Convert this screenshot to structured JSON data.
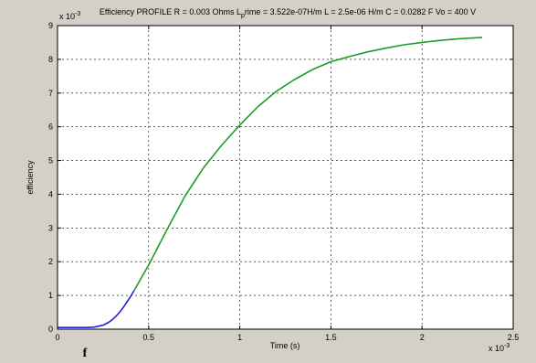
{
  "window": {
    "background": "#d4d0c8",
    "footer_glyph": "f"
  },
  "chart_data": {
    "type": "line",
    "title": {
      "pre": "Efficiency PROFILE R = 0.003 Ohms L",
      "sub": "p",
      "post": "rime = 3.522e-07H/m L = 2.5e-06 H/m C = 0.0282 F Vo = 400 V"
    },
    "xlabel": "Time (s)",
    "ylabel": "efficiency",
    "xlim": [
      0,
      2.5
    ],
    "ylim": [
      0,
      9
    ],
    "x_multiplier": "x 10",
    "x_multiplier_exp": "-3",
    "y_multiplier": "x 10",
    "y_multiplier_exp": "-3",
    "x_ticks": [
      0,
      0.5,
      1,
      1.5,
      2,
      2.5
    ],
    "x_tick_labels": [
      "0",
      "0.5",
      "1",
      "1.5",
      "2",
      "2.5"
    ],
    "y_ticks": [
      0,
      1,
      2,
      3,
      4,
      5,
      6,
      7,
      8,
      9
    ],
    "y_tick_labels": [
      "0",
      "1",
      "2",
      "3",
      "4",
      "5",
      "6",
      "7",
      "8",
      "9"
    ],
    "grid": true,
    "series": [
      {
        "color": "#1f1fe0",
        "x": [
          0,
          0.05,
          0.1,
          0.15,
          0.2,
          0.25,
          0.28,
          0.3,
          0.32,
          0.34,
          0.36,
          0.38,
          0.4,
          0.42
        ],
        "y": [
          0.05,
          0.05,
          0.05,
          0.05,
          0.06,
          0.12,
          0.2,
          0.28,
          0.38,
          0.5,
          0.64,
          0.8,
          0.96,
          1.14
        ]
      },
      {
        "color": "#1a9e2a",
        "x": [
          0.42,
          0.5,
          0.6,
          0.7,
          0.8,
          0.9,
          1.0,
          1.1,
          1.2,
          1.3,
          1.4,
          1.5,
          1.6,
          1.7,
          1.8,
          1.9,
          2.0,
          2.1,
          2.2,
          2.33
        ],
        "y": [
          1.14,
          1.9,
          2.95,
          3.95,
          4.78,
          5.45,
          6.05,
          6.6,
          7.05,
          7.4,
          7.7,
          7.93,
          8.08,
          8.22,
          8.33,
          8.43,
          8.5,
          8.56,
          8.61,
          8.65
        ]
      }
    ]
  }
}
